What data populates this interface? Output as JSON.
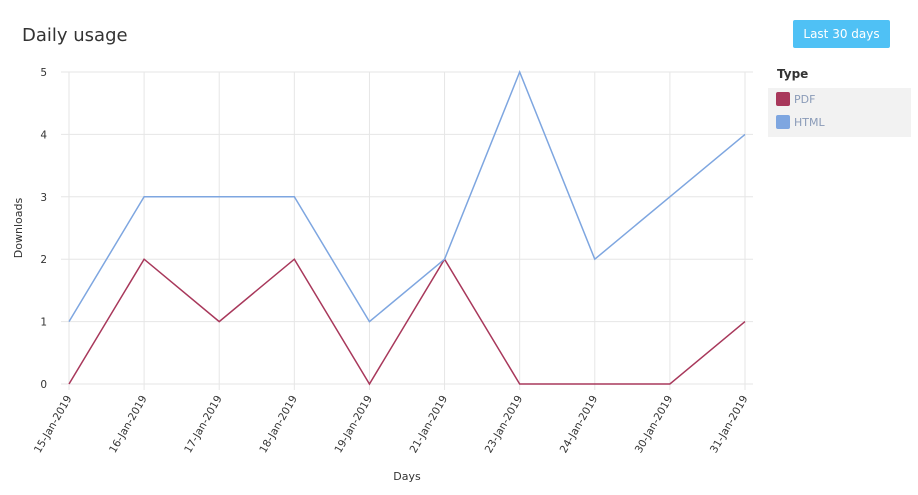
{
  "header": {
    "button": "Last 30 days"
  },
  "chart_data": {
    "type": "line",
    "title": "Daily usage",
    "x_label": "Days",
    "y_label": "Downloads",
    "categories": [
      "15-Jan-2019",
      "16-Jan-2019",
      "17-Jan-2019",
      "18-Jan-2019",
      "19-Jan-2019",
      "21-Jan-2019",
      "23-Jan-2019",
      "24-Jan-2019",
      "30-Jan-2019",
      "31-Jan-2019"
    ],
    "series": [
      {
        "name": "PDF",
        "color": "#a8385b",
        "values": [
          0,
          2,
          1,
          2,
          0,
          2,
          0,
          0,
          0,
          1
        ]
      },
      {
        "name": "HTML",
        "color": "#7ea6e0",
        "values": [
          1,
          3,
          3,
          3,
          1,
          2,
          5,
          2,
          3,
          4
        ]
      }
    ],
    "ylim": [
      0,
      5
    ],
    "yticks": [
      0,
      1,
      2,
      3,
      4,
      5
    ],
    "grid": true,
    "legend_title": "Type",
    "legend_position": "right"
  }
}
